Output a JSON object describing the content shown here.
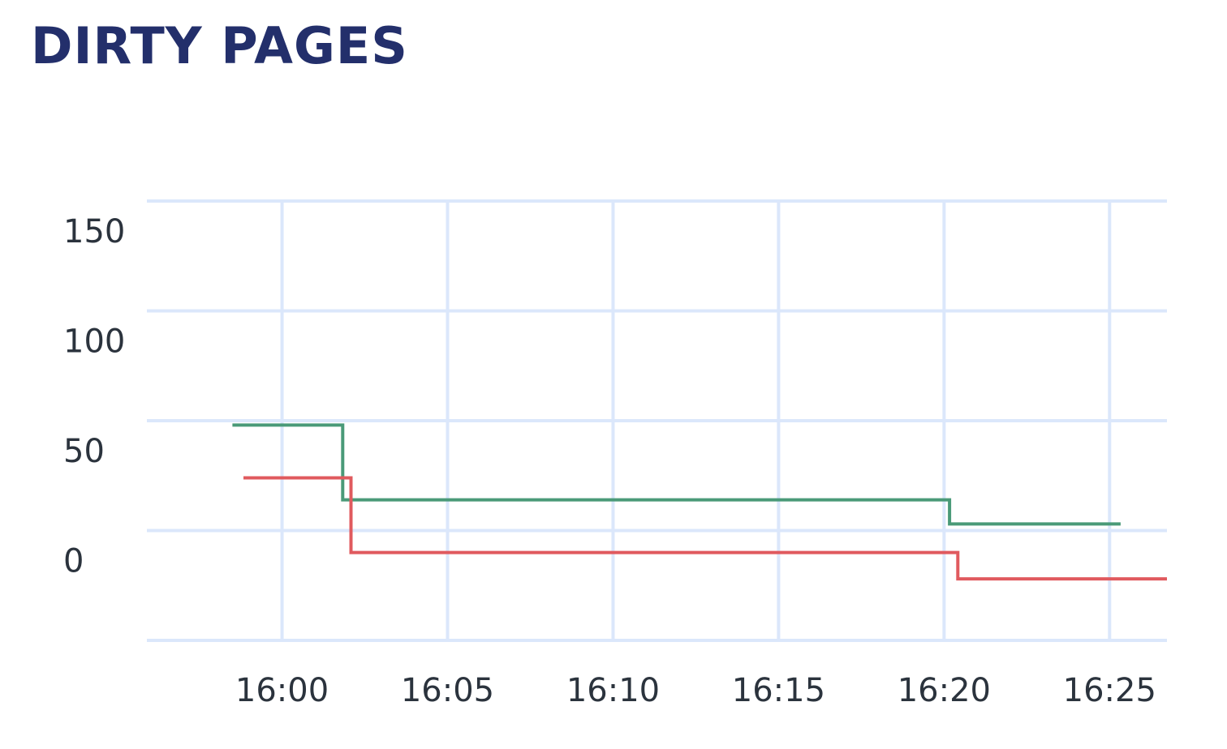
{
  "title": "DIRTY PAGES",
  "chart_data": {
    "type": "line",
    "title": "DIRTY PAGES",
    "xlabel": "",
    "ylabel": "",
    "x_tick_labels": [
      "16:00",
      "16:05",
      "16:10",
      "16:15",
      "16:20",
      "16:25"
    ],
    "y_tick_labels": [
      "150",
      "100",
      "50",
      "0"
    ],
    "y_ticks": [
      150,
      100,
      50,
      0
    ],
    "ylim": [
      -50,
      150
    ],
    "xlim": [
      "15:55:55",
      "16:26:44"
    ],
    "grid": true,
    "line_shape": "step",
    "series": [
      {
        "color": "#4a9a78",
        "points": [
          {
            "x": "15:58:30",
            "y": 48
          },
          {
            "x": "16:01:50",
            "y": 48
          },
          {
            "x": "16:01:50",
            "y": 14
          },
          {
            "x": "16:20:10",
            "y": 14
          },
          {
            "x": "16:20:10",
            "y": 3
          },
          {
            "x": "16:25:20",
            "y": 3
          }
        ]
      },
      {
        "color": "#e05a5e",
        "points": [
          {
            "x": "15:58:50",
            "y": 24
          },
          {
            "x": "16:02:05",
            "y": 24
          },
          {
            "x": "16:02:05",
            "y": -10
          },
          {
            "x": "16:20:25",
            "y": -10
          },
          {
            "x": "16:20:25",
            "y": -22
          },
          {
            "x": "16:26:44",
            "y": -22
          }
        ]
      }
    ]
  }
}
